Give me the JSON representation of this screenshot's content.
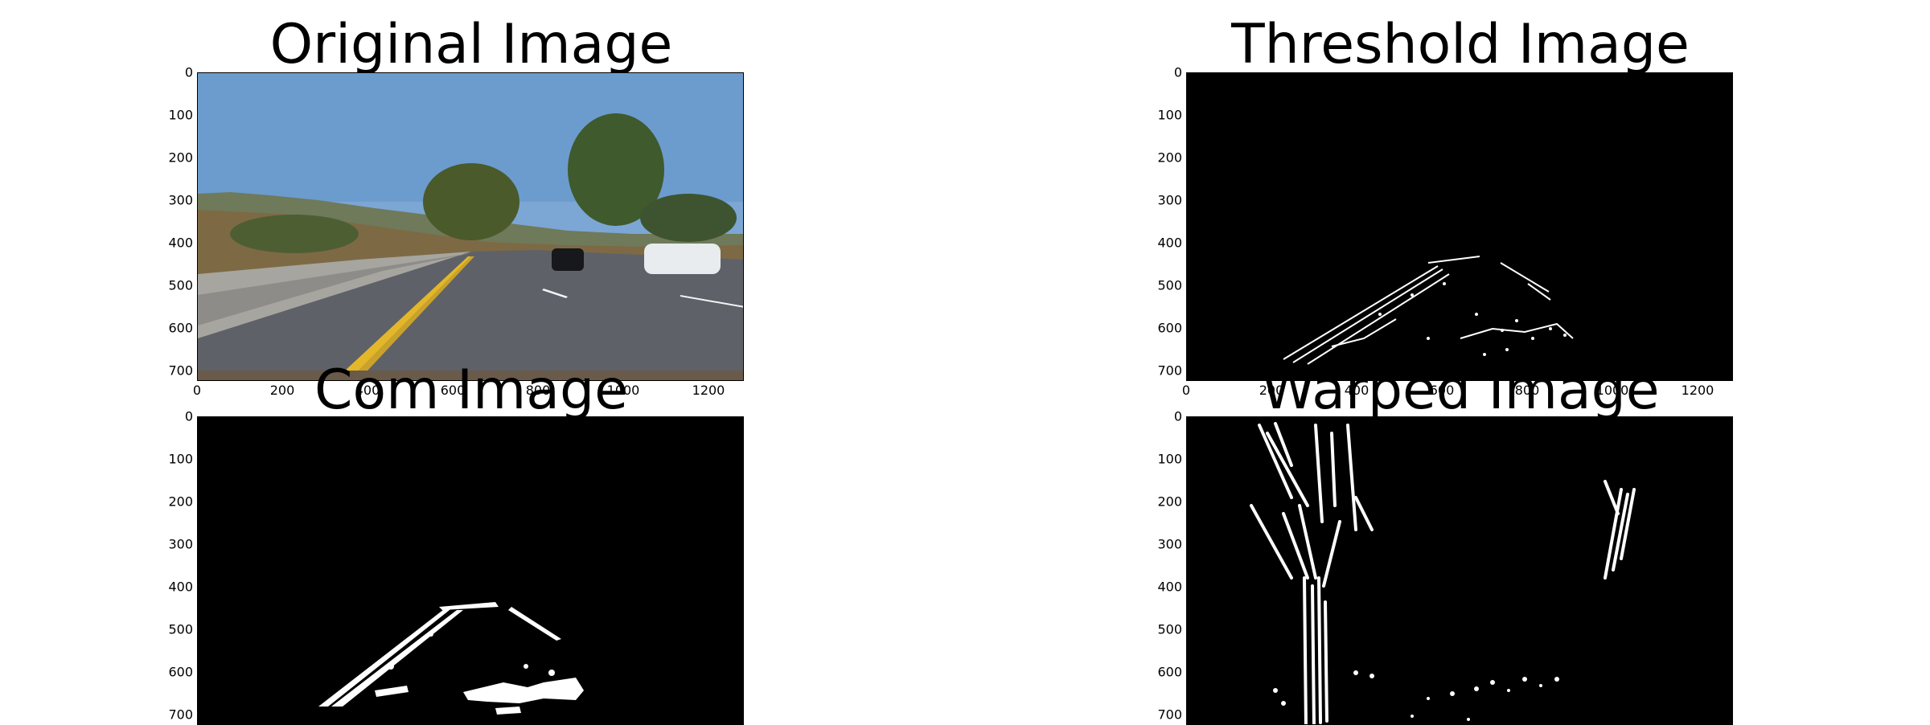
{
  "figure": {
    "panels": [
      {
        "id": "original",
        "title": "Original Image",
        "yticks": [
          "0",
          "100",
          "200",
          "300",
          "400",
          "500",
          "600",
          "700"
        ],
        "xticks": [
          "0",
          "200",
          "400",
          "600",
          "800",
          "1000",
          "1200"
        ]
      },
      {
        "id": "threshold",
        "title": "Threshold Image",
        "yticks": [
          "0",
          "100",
          "200",
          "300",
          "400",
          "500",
          "600",
          "700"
        ],
        "xticks": [
          "0",
          "200",
          "400",
          "600",
          "800",
          "1000",
          "1200"
        ]
      },
      {
        "id": "com",
        "title": "Com Image",
        "yticks": [
          "0",
          "100",
          "200",
          "300",
          "400",
          "500",
          "600",
          "700"
        ],
        "xticks": []
      },
      {
        "id": "warped",
        "title": "Warped Image",
        "yticks": [
          "0",
          "100",
          "200",
          "300",
          "400",
          "500",
          "600",
          "700"
        ],
        "xticks": []
      }
    ]
  },
  "colors": {
    "sky": "#6f9fd0",
    "road": "#5f6168",
    "lane_yellow": "#e2b72a",
    "binary_background": "#000000",
    "binary_foreground": "#ffffff"
  }
}
